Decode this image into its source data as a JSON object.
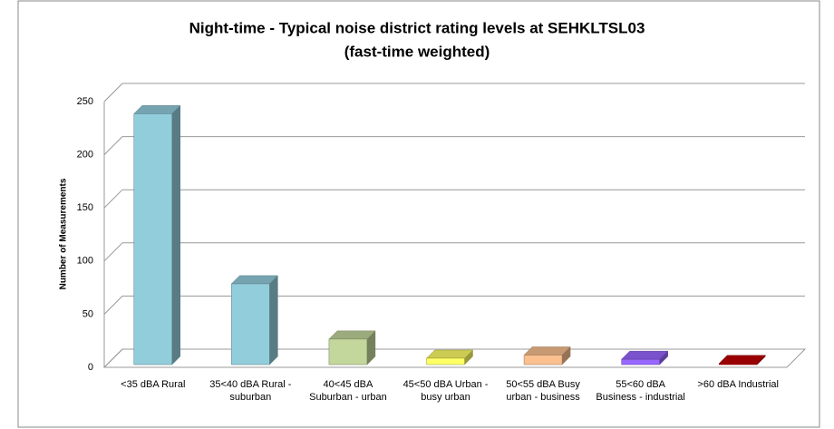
{
  "chart_data": {
    "type": "bar3d",
    "title": "Night-time - Typical noise district rating levels at SEHKLTSL03",
    "subtitle": "(fast-time weighted)",
    "y_label": "Number of Measurements",
    "categories": [
      "<35 dBA Rural",
      "35<40 dBA Rural - suburban",
      "40<45 dBA Suburban - urban",
      "45<50 dBA Urban - busy urban",
      "50<55 dBA Busy urban - business",
      "55<60 dBA Business - industrial",
      ">60 dBA Industrial"
    ],
    "values": [
      236,
      76,
      24,
      6,
      9,
      5,
      1
    ],
    "colors": [
      "#92cddc",
      "#92cddc",
      "#c3d69b",
      "#ffff66",
      "#fac090",
      "#9966ff",
      "#c00000"
    ],
    "ylim": [
      0,
      250
    ],
    "yticks": [
      0,
      50,
      100,
      150,
      200,
      250
    ],
    "grid": true
  }
}
